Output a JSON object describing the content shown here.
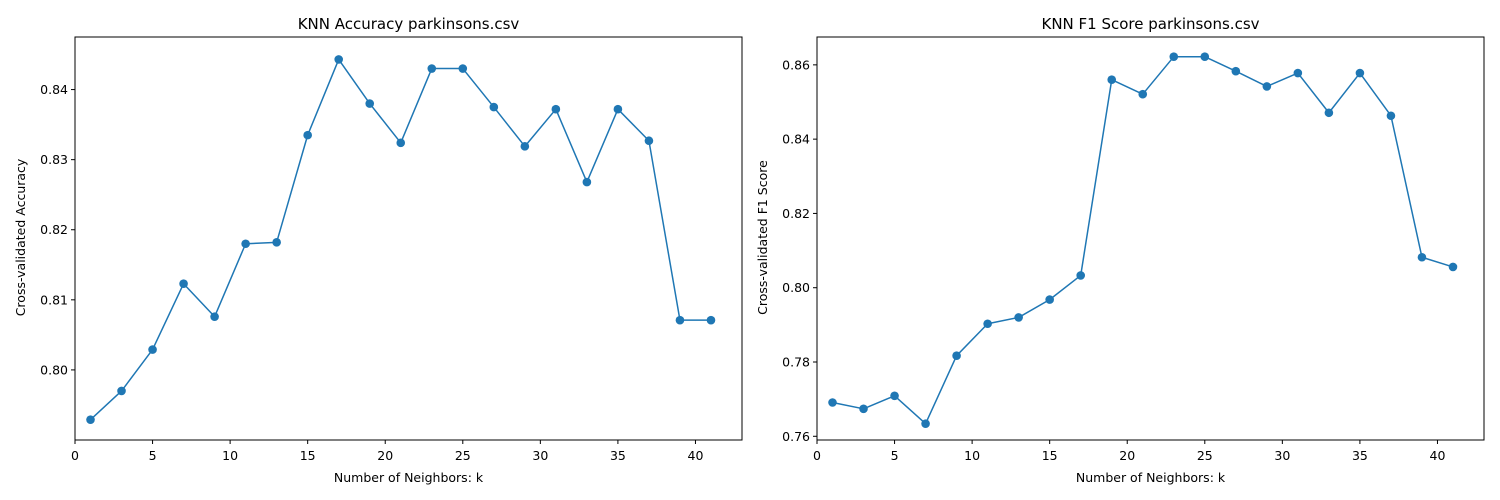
{
  "colors": {
    "series": "#1f77b4",
    "axes": "#000000",
    "background": "#ffffff"
  },
  "chart_data": [
    {
      "type": "line",
      "markers": "circle",
      "title": "KNN Accuracy parkinsons.csv",
      "xlabel": "Number of Neighbors: k",
      "ylabel": "Cross-validated Accuracy",
      "grid": false,
      "xlim": [
        -0.0,
        43.0
      ],
      "ylim": [
        0.79,
        0.8475
      ],
      "xticks": [
        0,
        5,
        10,
        15,
        20,
        25,
        30,
        35,
        40
      ],
      "xtick_labels": [
        "0",
        "5",
        "10",
        "15",
        "20",
        "25",
        "30",
        "35",
        "40"
      ],
      "yticks": [
        0.8,
        0.81,
        0.82,
        0.83,
        0.84
      ],
      "ytick_labels": [
        "0.80",
        "0.81",
        "0.82",
        "0.83",
        "0.84"
      ],
      "x": [
        1,
        3,
        5,
        7,
        9,
        11,
        13,
        15,
        17,
        19,
        21,
        23,
        25,
        27,
        29,
        31,
        33,
        35,
        37,
        39,
        41
      ],
      "series": [
        {
          "values": [
            0.7929,
            0.797,
            0.8029,
            0.8123,
            0.8076,
            0.818,
            0.8182,
            0.8335,
            0.8443,
            0.838,
            0.8324,
            0.843,
            0.843,
            0.8375,
            0.8319,
            0.8372,
            0.8268,
            0.8372,
            0.8327,
            0.8071,
            0.8071
          ]
        }
      ]
    },
    {
      "type": "line",
      "markers": "circle",
      "title": "KNN F1 Score parkinsons.csv",
      "xlabel": "Number of Neighbors: k",
      "ylabel": "Cross-validated F1 Score",
      "grid": false,
      "xlim": [
        -0.0,
        43.0
      ],
      "ylim": [
        0.759,
        0.8675
      ],
      "xticks": [
        0,
        5,
        10,
        15,
        20,
        25,
        30,
        35,
        40
      ],
      "xtick_labels": [
        "0",
        "5",
        "10",
        "15",
        "20",
        "25",
        "30",
        "35",
        "40"
      ],
      "yticks": [
        0.76,
        0.78,
        0.8,
        0.82,
        0.84,
        0.86
      ],
      "ytick_labels": [
        "0.76",
        "0.78",
        "0.80",
        "0.82",
        "0.84",
        "0.86"
      ],
      "x": [
        1,
        3,
        5,
        7,
        9,
        11,
        13,
        15,
        17,
        19,
        21,
        23,
        25,
        27,
        29,
        31,
        33,
        35,
        37,
        39,
        41
      ],
      "series": [
        {
          "values": [
            0.7691,
            0.7674,
            0.7709,
            0.7634,
            0.7817,
            0.7903,
            0.792,
            0.7968,
            0.8033,
            0.856,
            0.8521,
            0.8622,
            0.8622,
            0.8583,
            0.8542,
            0.8578,
            0.8471,
            0.8578,
            0.8463,
            0.8082,
            0.8056
          ]
        }
      ]
    }
  ]
}
